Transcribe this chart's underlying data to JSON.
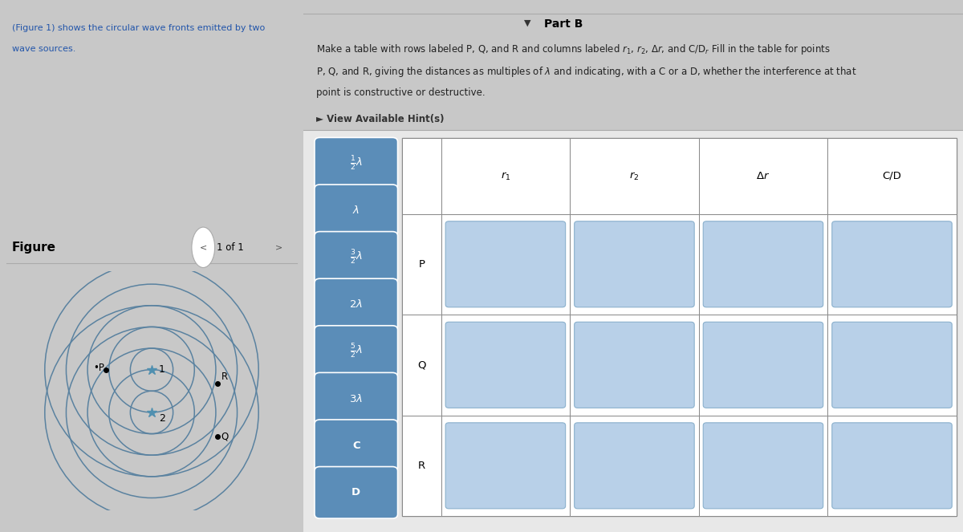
{
  "title": "Part B",
  "left_text_line1": "(Figure 1) shows the circular wave fronts emitted by two",
  "left_text_line2": "wave sources.",
  "hint_text": "► View Available Hint(s)",
  "figure_label": "Figure",
  "figure_nav": "1 of 1",
  "button_math_labels": [
    "$\\frac{1}{2}\\lambda$",
    "$\\lambda$",
    "$\\frac{3}{2}\\lambda$",
    "$2\\lambda$",
    "$\\frac{5}{2}\\lambda$",
    "$3\\lambda$",
    "C",
    "D"
  ],
  "table_headers": [
    "$r_1$",
    "$r_2$",
    "$\\Delta r$",
    "C/D"
  ],
  "table_rows": [
    "P",
    "Q",
    "R"
  ],
  "button_color": "#5b8db8",
  "cell_color": "#b8d0e8",
  "cell_border_color": "#8ab0cc",
  "page_bg": "#c8c8c8",
  "left_panel_bg": "#c8c8c8",
  "right_panel_bg": "#e0e0e0",
  "table_outer_bg": "#e8e8e8",
  "wave_circle_color": "#5a82a0",
  "source_color": "#5090b0",
  "divider_color": "#aaaaaa",
  "text_color": "#222222",
  "link_color": "#2255aa"
}
